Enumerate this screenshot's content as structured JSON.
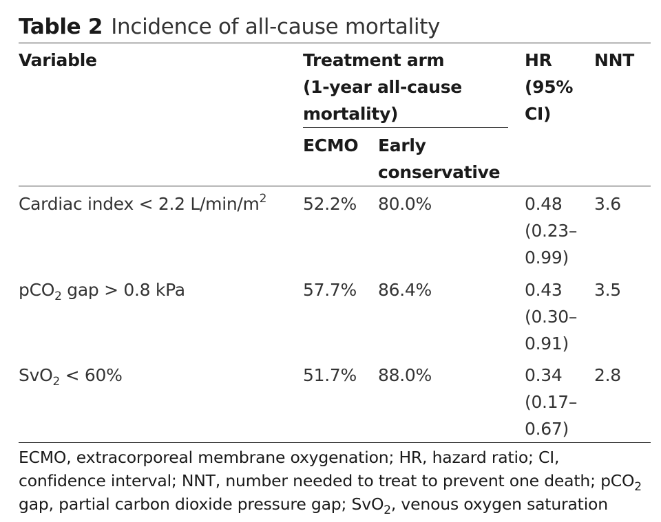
{
  "table": {
    "label": "Table 2",
    "title": "Incidence of all-cause mortality",
    "headers": {
      "variable": "Variable",
      "treatment_arm": [
        "Treatment arm",
        "(1-year all-cause",
        "mortality)"
      ],
      "ecmo": "ECMO",
      "early_conservative": [
        "Early",
        "conservative"
      ],
      "hr": [
        "HR",
        "(95%",
        "CI)"
      ],
      "nnt": "NNT"
    },
    "rows": [
      {
        "variable_pre": "Cardiac index < 2.2 L/min/m",
        "variable_sub": "",
        "variable_sup": "2",
        "variable_post": "",
        "ecmo": "52.2%",
        "early_conservative": "80.0%",
        "hr": [
          "0.48",
          "(0.23–",
          "0.99)"
        ],
        "nnt": "3.6"
      },
      {
        "variable_pre": "pCO",
        "variable_sub": "2",
        "variable_sup": "",
        "variable_post": " gap > 0.8 kPa",
        "ecmo": "57.7%",
        "early_conservative": "86.4%",
        "hr": [
          "0.43",
          "(0.30–",
          "0.91)"
        ],
        "nnt": "3.5"
      },
      {
        "variable_pre": "SvO",
        "variable_sub": "2",
        "variable_sup": "",
        "variable_post": " < 60%",
        "ecmo": "51.7%",
        "early_conservative": "88.0%",
        "hr": [
          "0.34",
          "(0.17–",
          "0.67)"
        ],
        "nnt": "2.8"
      }
    ],
    "footnote": {
      "part1": "ECMO, extracorporeal membrane oxygenation; HR, hazard ratio; CI, confidence interval; NNT, number needed to treat to prevent one death; pCO",
      "sub1": "2",
      "part2": " gap, partial carbon dioxide pressure gap; SvO",
      "sub2": "2",
      "part3": ", venous oxygen saturation"
    }
  }
}
